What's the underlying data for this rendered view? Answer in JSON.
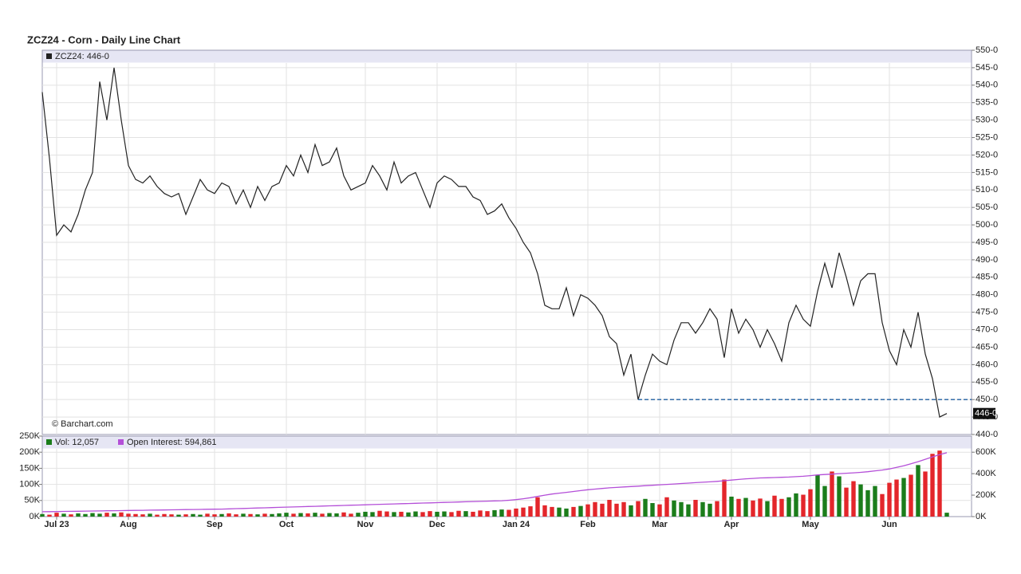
{
  "chart_data": [
    {
      "type": "line",
      "title": "ZCZ24 - Corn - Daily Line Chart",
      "watermark": "© Barchart.com",
      "last_label": "446-0",
      "reference_line": {
        "value": 450,
        "color": "#1f5fa0"
      },
      "series": [
        {
          "name": "ZCZ24: 446-0",
          "color": "#222222",
          "values": [
            538,
            519,
            497,
            500,
            498,
            503,
            510,
            515,
            541,
            530,
            545,
            530,
            517,
            513,
            512,
            514,
            511,
            509,
            508,
            509,
            503,
            508,
            513,
            510,
            509,
            512,
            511,
            506,
            510,
            505,
            511,
            507,
            511,
            512,
            517,
            514,
            520,
            515,
            523,
            517,
            518,
            522,
            514,
            510,
            511,
            512,
            517,
            514,
            510,
            518,
            512,
            514,
            515,
            510,
            505,
            512,
            514,
            513,
            511,
            511,
            508,
            507,
            503,
            504,
            506,
            502,
            499,
            495,
            492,
            486,
            477,
            476,
            476,
            482,
            474,
            480,
            479,
            477,
            474,
            468,
            466,
            457,
            463,
            450,
            457,
            463,
            461,
            460,
            467,
            472,
            472,
            469,
            472,
            476,
            473,
            462,
            476,
            469,
            473,
            470,
            465,
            470,
            466,
            461,
            472,
            477,
            473,
            471,
            481,
            489,
            482,
            492,
            485,
            477,
            484,
            486,
            486,
            472,
            464,
            460,
            470,
            465,
            475,
            463,
            456,
            445,
            446
          ]
        }
      ],
      "ylim": [
        440,
        550
      ],
      "yticks": [
        {
          "value": 550,
          "label": "550-0"
        },
        {
          "value": 545,
          "label": "545-0"
        },
        {
          "value": 540,
          "label": "540-0"
        },
        {
          "value": 535,
          "label": "535-0"
        },
        {
          "value": 530,
          "label": "530-0"
        },
        {
          "value": 525,
          "label": "525-0"
        },
        {
          "value": 520,
          "label": "520-0"
        },
        {
          "value": 515,
          "label": "515-0"
        },
        {
          "value": 510,
          "label": "510-0"
        },
        {
          "value": 505,
          "label": "505-0"
        },
        {
          "value": 500,
          "label": "500-0"
        },
        {
          "value": 495,
          "label": "495-0"
        },
        {
          "value": 490,
          "label": "490-0"
        },
        {
          "value": 485,
          "label": "485-0"
        },
        {
          "value": 480,
          "label": "480-0"
        },
        {
          "value": 475,
          "label": "475-0"
        },
        {
          "value": 470,
          "label": "470-0"
        },
        {
          "value": 465,
          "label": "465-0"
        },
        {
          "value": 460,
          "label": "460-0"
        },
        {
          "value": 455,
          "label": "455-0"
        },
        {
          "value": 450,
          "label": "450-0"
        },
        {
          "value": 445,
          "label": "445-0"
        },
        {
          "value": 440,
          "label": "440-0"
        }
      ],
      "grid": true
    },
    {
      "type": "bar",
      "categories": [
        null,
        null,
        "Jul 23",
        null,
        null,
        null,
        null,
        null,
        null,
        null,
        null,
        null,
        "Aug",
        null,
        null,
        null,
        null,
        null,
        null,
        null,
        null,
        null,
        null,
        null,
        "Sep",
        null,
        null,
        null,
        null,
        null,
        null,
        null,
        null,
        null,
        "Oct",
        null,
        null,
        null,
        null,
        null,
        null,
        null,
        null,
        null,
        null,
        "Nov",
        null,
        null,
        null,
        null,
        null,
        null,
        null,
        null,
        null,
        "Dec",
        null,
        null,
        null,
        null,
        null,
        null,
        null,
        null,
        null,
        null,
        "Jan 24",
        null,
        null,
        null,
        null,
        null,
        null,
        null,
        null,
        null,
        "Feb",
        null,
        null,
        null,
        null,
        null,
        null,
        null,
        null,
        null,
        "Mar",
        null,
        null,
        null,
        null,
        null,
        null,
        null,
        null,
        null,
        "Apr",
        null,
        null,
        null,
        null,
        null,
        null,
        null,
        null,
        null,
        null,
        "May",
        null,
        null,
        null,
        null,
        null,
        null,
        null,
        null,
        null,
        null,
        "Jun",
        null,
        null,
        null,
        null,
        null,
        null,
        null,
        null
      ],
      "series": [
        {
          "name": "Vol: 12,057",
          "up_color": "#1b7d1b",
          "down_color": "#e3262b",
          "values": [
            8000,
            6000,
            12000,
            9000,
            7000,
            10000,
            8000,
            11000,
            9000,
            12000,
            10000,
            13000,
            9000,
            8000,
            7000,
            9000,
            6000,
            8000,
            7000,
            6000,
            7000,
            8000,
            6000,
            9000,
            7000,
            8000,
            10000,
            7000,
            9000,
            8000,
            7000,
            9000,
            8000,
            10000,
            12000,
            9000,
            11000,
            10000,
            12000,
            9000,
            11000,
            10000,
            13000,
            9000,
            12000,
            15000,
            14000,
            18000,
            16000,
            14000,
            15000,
            13000,
            16000,
            14000,
            17000,
            15000,
            16000,
            14000,
            18000,
            17000,
            15000,
            19000,
            17000,
            20000,
            22000,
            21000,
            25000,
            28000,
            32000,
            60000,
            35000,
            30000,
            28000,
            25000,
            30000,
            33000,
            38000,
            45000,
            40000,
            52000,
            40000,
            45000,
            35000,
            48000,
            55000,
            42000,
            38000,
            60000,
            50000,
            45000,
            38000,
            52000,
            45000,
            40000,
            48000,
            115000,
            62000,
            55000,
            58000,
            50000,
            56000,
            48000,
            65000,
            55000,
            60000,
            72000,
            68000,
            85000,
            130000,
            95000,
            140000,
            125000,
            90000,
            110000,
            100000,
            82000,
            95000,
            70000,
            105000,
            115000,
            120000,
            130000,
            160000,
            140000,
            195000,
            205000,
            12057
          ]
        },
        {
          "name": "Open Interest: 594,861",
          "color": "#b44fd8",
          "axis": "y2",
          "values": [
            45000,
            46000,
            47000,
            48000,
            49000,
            50000,
            51000,
            52000,
            53000,
            54000,
            55000,
            56000,
            57000,
            58000,
            59000,
            60000,
            61000,
            62000,
            63000,
            64000,
            65000,
            66000,
            67000,
            68000,
            69000,
            70000,
            72000,
            74000,
            76000,
            78000,
            80000,
            82000,
            84000,
            86000,
            88000,
            90000,
            92000,
            94000,
            96000,
            98000,
            100000,
            102000,
            104000,
            106000,
            108000,
            110000,
            112000,
            114000,
            116000,
            118000,
            120000,
            122000,
            124000,
            126000,
            128000,
            130000,
            132000,
            134000,
            136000,
            138000,
            140000,
            142000,
            144000,
            146000,
            148000,
            152000,
            158000,
            166000,
            176000,
            188000,
            200000,
            210000,
            218000,
            226000,
            234000,
            242000,
            250000,
            256000,
            262000,
            268000,
            272000,
            276000,
            280000,
            284000,
            288000,
            292000,
            296000,
            300000,
            304000,
            308000,
            312000,
            316000,
            320000,
            324000,
            328000,
            334000,
            340000,
            346000,
            352000,
            356000,
            360000,
            362000,
            364000,
            366000,
            368000,
            372000,
            376000,
            382000,
            388000,
            392000,
            396000,
            400000,
            404000,
            408000,
            412000,
            418000,
            426000,
            434000,
            444000,
            458000,
            474000,
            492000,
            512000,
            534000,
            556000,
            578000,
            594861
          ]
        }
      ],
      "ylim": [
        0,
        250000
      ],
      "yticks": [
        {
          "value": 0,
          "label": "0K"
        },
        {
          "value": 50000,
          "label": "50K"
        },
        {
          "value": 100000,
          "label": "100K"
        },
        {
          "value": 150000,
          "label": "150K"
        },
        {
          "value": 200000,
          "label": "200K"
        },
        {
          "value": 250000,
          "label": "250K"
        }
      ],
      "y2lim": [
        0,
        750000
      ],
      "y2ticks": [
        {
          "value": 0,
          "label": "0K"
        },
        {
          "value": 200000,
          "label": "200K"
        },
        {
          "value": 400000,
          "label": "400K"
        },
        {
          "value": 600000,
          "label": "600K"
        }
      ],
      "grid": true
    }
  ]
}
